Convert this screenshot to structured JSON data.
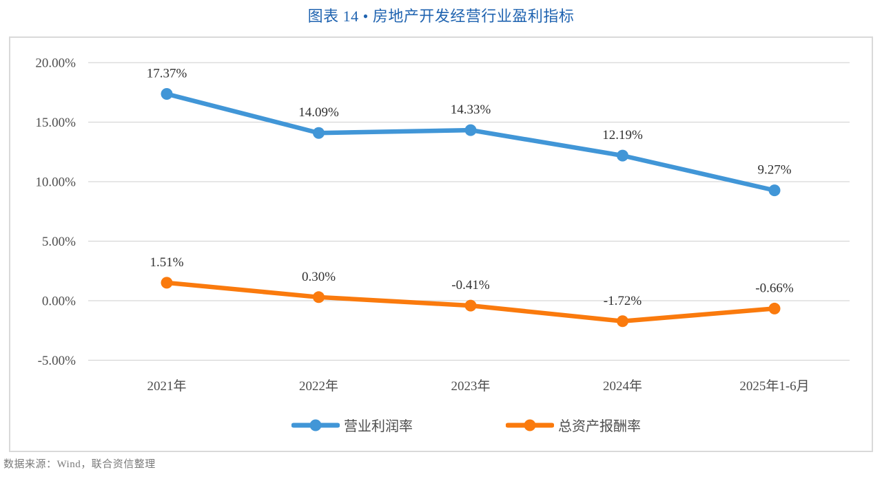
{
  "page": {
    "footer": "数据来源：Wind，联合资信整理"
  },
  "chart_data": {
    "type": "line",
    "title": "图表 14 • 房地产开发经营行业盈利指标",
    "categories": [
      "2021年",
      "2022年",
      "2023年",
      "2024年",
      "2025年1-6月"
    ],
    "series": [
      {
        "name": "营业利润率",
        "color": "#4196d7",
        "values": [
          17.37,
          14.09,
          14.33,
          12.19,
          9.27
        ],
        "labels": [
          "17.37%",
          "14.09%",
          "14.33%",
          "12.19%",
          "9.27%"
        ]
      },
      {
        "name": "总资产报酬率",
        "color": "#fa7a0d",
        "values": [
          1.51,
          0.3,
          -0.41,
          -1.72,
          -0.66
        ],
        "labels": [
          "1.51%",
          "0.30%",
          "-0.41%",
          "-1.72%",
          "-0.66%"
        ]
      }
    ],
    "ylim": [
      -5,
      20
    ],
    "ytick_step": 5,
    "yticks": [
      {
        "value": 20,
        "label": "20.00%"
      },
      {
        "value": 15,
        "label": "15.00%"
      },
      {
        "value": 10,
        "label": "10.00%"
      },
      {
        "value": 5,
        "label": "5.00%"
      },
      {
        "value": 0,
        "label": "0.00%"
      },
      {
        "value": -5,
        "label": "-5.00%"
      }
    ],
    "grid": true,
    "legend_position": "bottom",
    "marker": "circle",
    "colors": {
      "title": "#1f63b0",
      "gridline": "#d6d6d6",
      "plot_border": "#d9d9d9",
      "tick_text": "#4d4d4d",
      "data_label_text": "#303030",
      "source_text": "#7a7a7a"
    }
  }
}
